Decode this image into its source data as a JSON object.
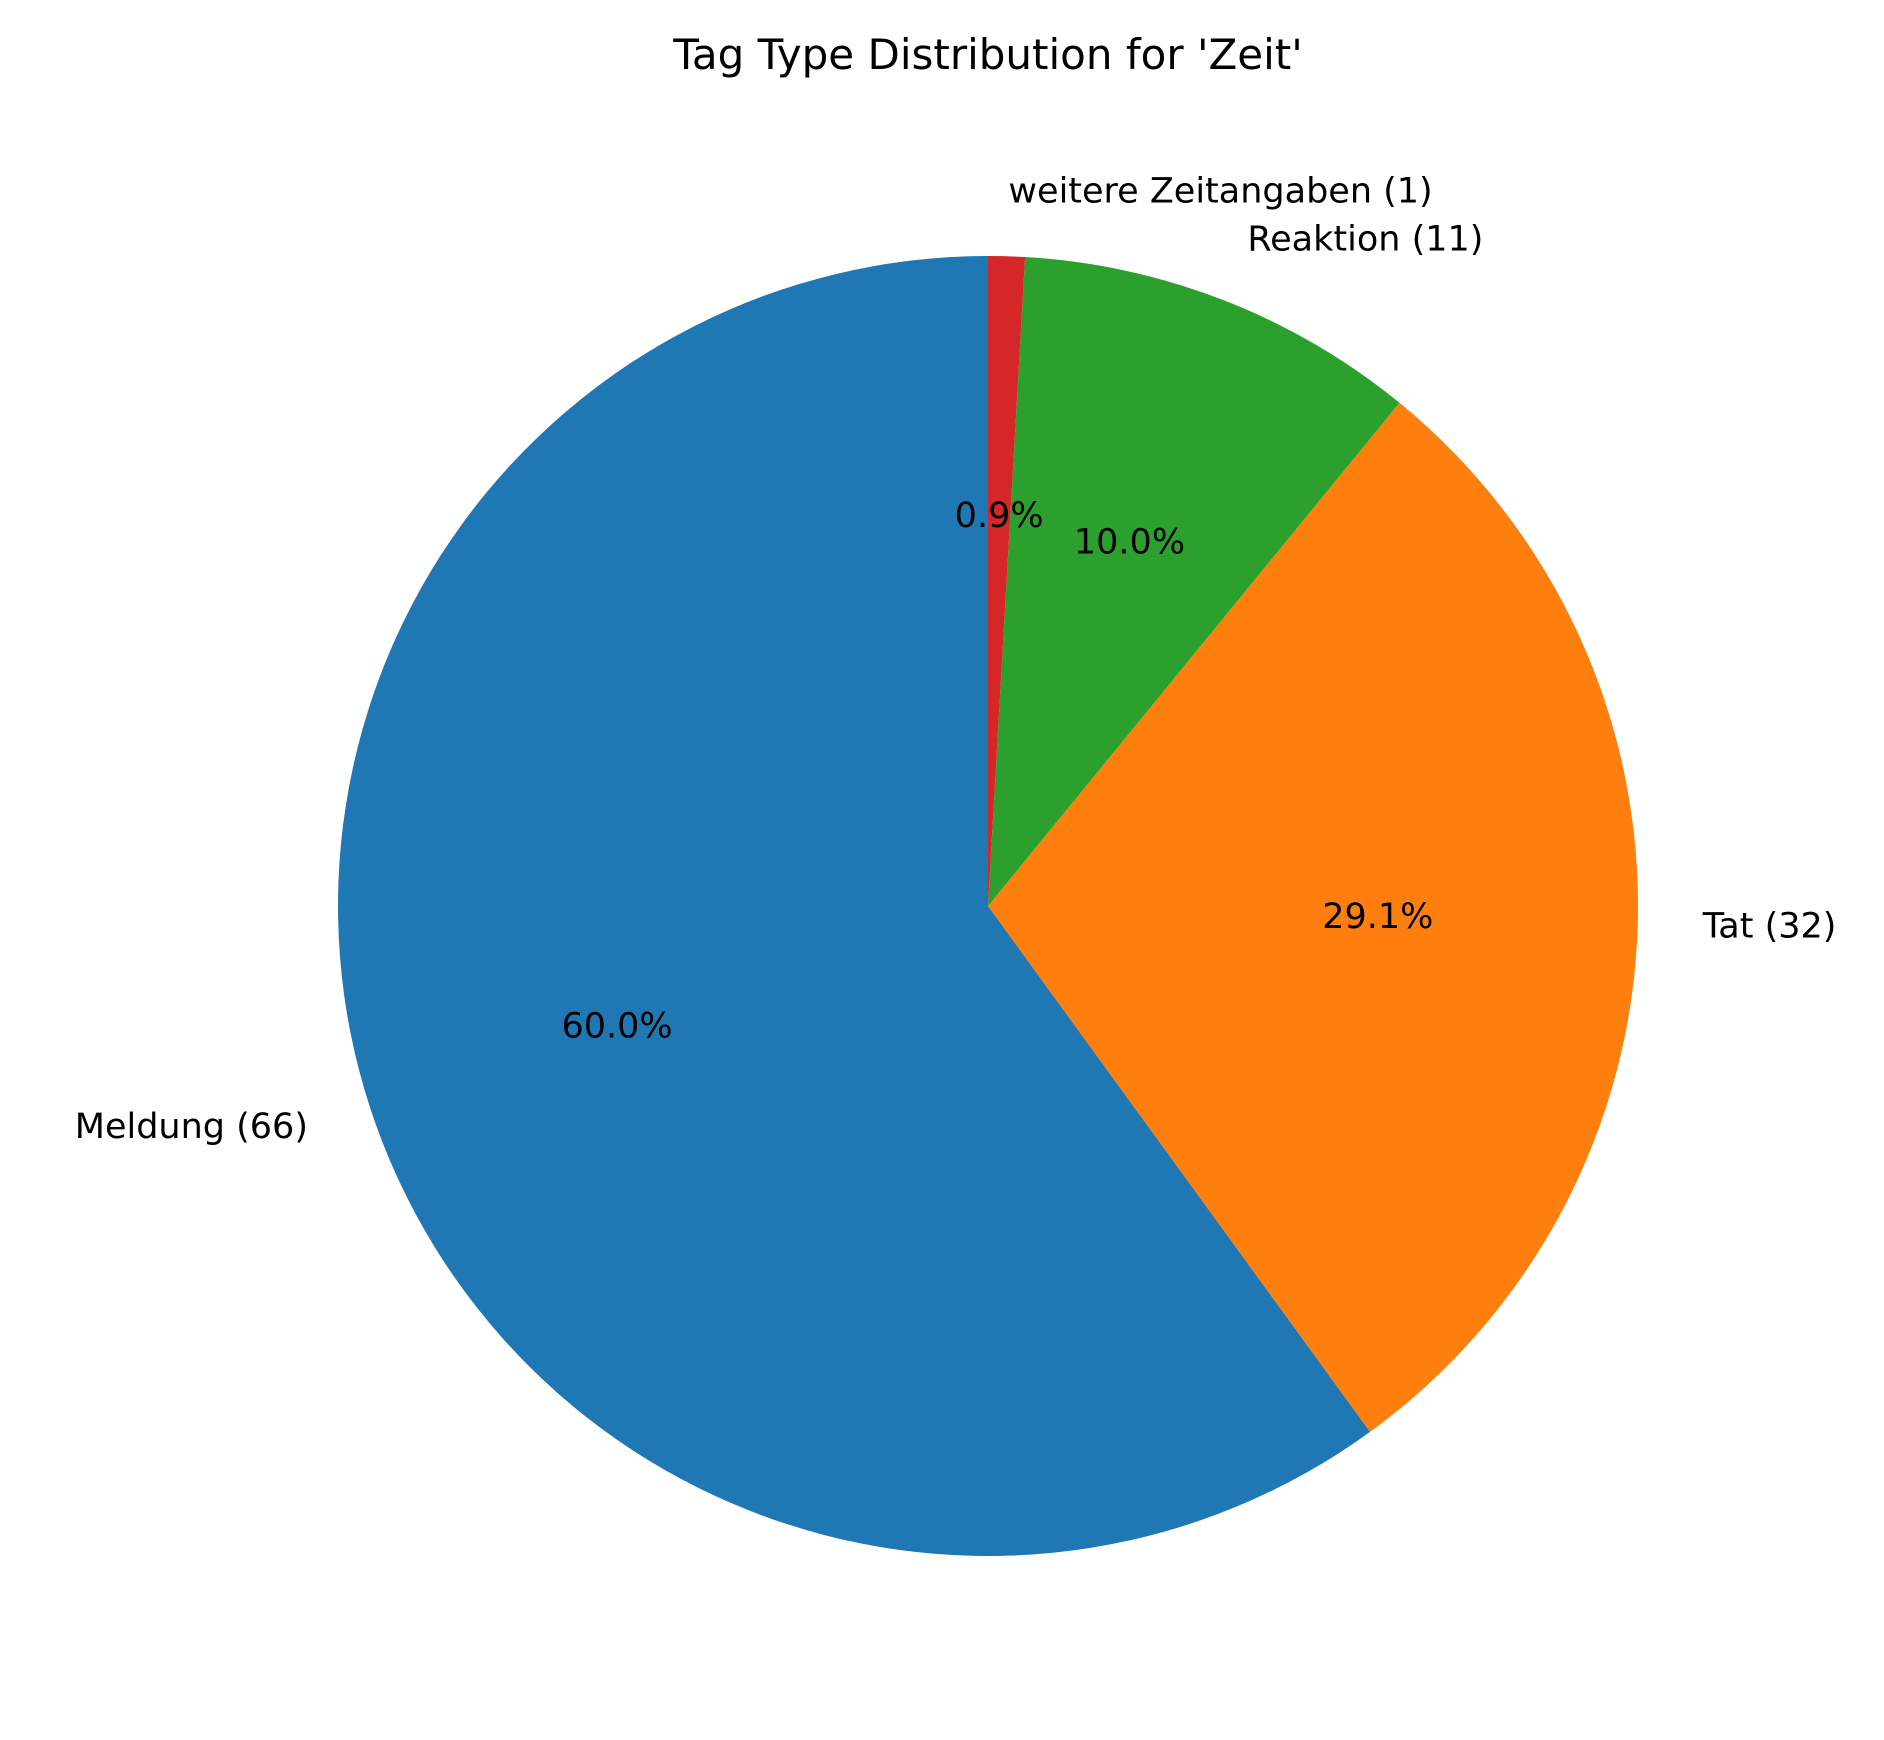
{
  "chart_data": {
    "type": "pie",
    "title": "Tag Type Distribution for 'Zeit'",
    "start_angle": "90° (top), counter-clockwise",
    "slices": [
      {
        "label": "Meldung (66)",
        "category": "Meldung",
        "count": 66,
        "percent": 60.0,
        "percent_label": "60.0%",
        "color": "#1f77b4"
      },
      {
        "label": "Tat (32)",
        "category": "Tat",
        "count": 32,
        "percent": 29.1,
        "percent_label": "29.1%",
        "color": "#ff7f0e"
      },
      {
        "label": "Reaktion (11)",
        "category": "Reaktion",
        "count": 11,
        "percent": 10.0,
        "percent_label": "10.0%",
        "color": "#2ca02c"
      },
      {
        "label": "weitere Zeitangaben (1)",
        "category": "weitere Zeitangaben",
        "count": 1,
        "percent": 0.9,
        "percent_label": "0.9%",
        "color": "#d62728"
      }
    ]
  }
}
